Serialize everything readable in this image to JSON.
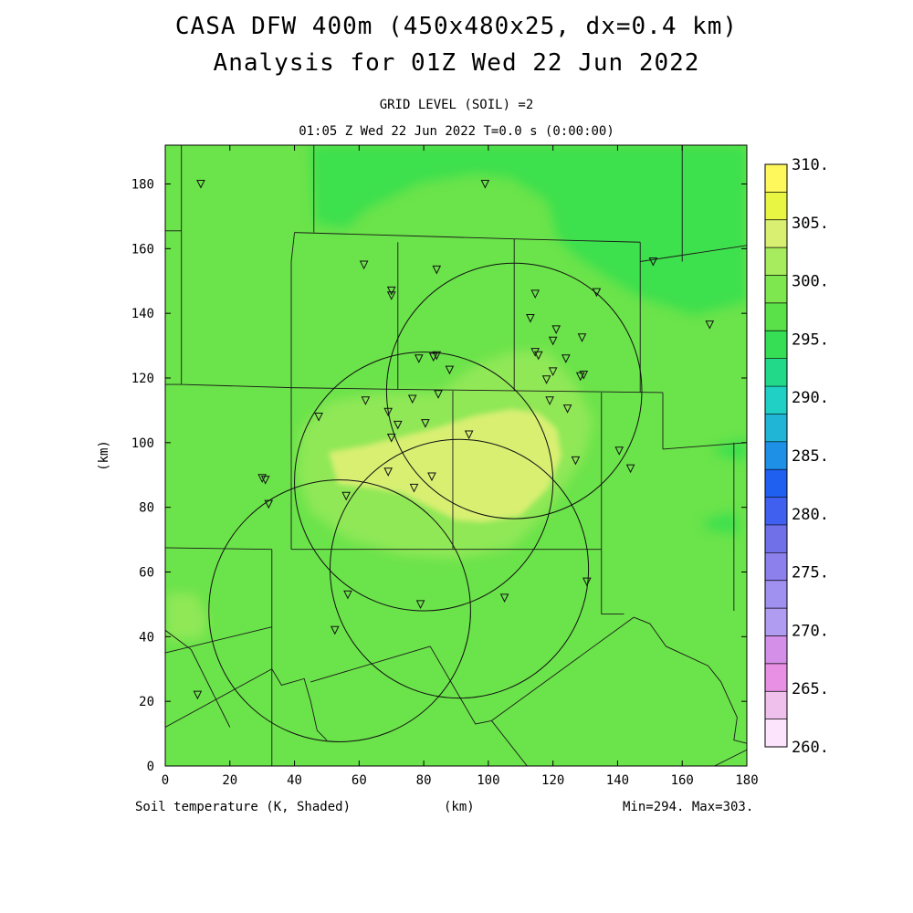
{
  "title_line1": "CASA DFW 400m (450x480x25, dx=0.4 km)",
  "title_line2": "Analysis for 01Z Wed 22 Jun 2022",
  "subtitle_line1": "GRID LEVEL (SOIL) =2",
  "subtitle_line2": "01:05 Z Wed 22 Jun 2022   T=0.0 s (0:00:00)",
  "footer": {
    "field": "Soil temperature (K, Shaded)",
    "xunit": "(km)",
    "minmax": "Min=294. Max=303."
  },
  "colors": {
    "bg_green": "#6be34a",
    "dark_green": "#3ee04e",
    "light_green": "#90e856",
    "pale_yellow": "#d8ef72"
  },
  "chart_data": {
    "type": "heatmap",
    "xlabel": "",
    "ylabel": "(km)",
    "xlim": [
      0,
      180
    ],
    "ylim": [
      0,
      192
    ],
    "xticks": [
      0,
      20,
      40,
      60,
      80,
      100,
      120,
      140,
      160,
      180
    ],
    "yticks": [
      0,
      20,
      40,
      60,
      80,
      100,
      120,
      140,
      160,
      180
    ],
    "colorbar": {
      "labels": [
        "310.",
        "305.",
        "300.",
        "295.",
        "290.",
        "285.",
        "280.",
        "275.",
        "270.",
        "265.",
        "260."
      ],
      "colors": [
        "#fff85c",
        "#e8f542",
        "#d8ef72",
        "#a6ec5e",
        "#7ee64e",
        "#5ae048",
        "#36de56",
        "#22d98a",
        "#20d0c4",
        "#20b4d6",
        "#1e90e6",
        "#2060f0",
        "#4060f0",
        "#7070e8",
        "#8c80ec",
        "#a090f0",
        "#b09cf0",
        "#d490e8",
        "#e890e4",
        "#f0c0ec",
        "#fce4fc"
      ]
    },
    "radars": [
      {
        "x": 108,
        "y": 116,
        "r": 39.5
      },
      {
        "x": 80,
        "y": 88,
        "r": 40
      },
      {
        "x": 91,
        "y": 61,
        "r": 40
      },
      {
        "x": 54,
        "y": 48,
        "r": 40.5
      }
    ],
    "stations": [
      [
        11,
        180
      ],
      [
        99,
        180
      ],
      [
        61.5,
        155
      ],
      [
        84,
        153.5
      ],
      [
        70,
        147
      ],
      [
        70,
        145.5
      ],
      [
        151,
        156
      ],
      [
        114.5,
        146
      ],
      [
        133.5,
        146.5
      ],
      [
        113,
        138.5
      ],
      [
        121,
        135
      ],
      [
        120,
        131.5
      ],
      [
        129,
        132.5
      ],
      [
        168.5,
        136.5
      ],
      [
        114.5,
        128
      ],
      [
        115.5,
        127
      ],
      [
        124,
        126
      ],
      [
        78.5,
        126
      ],
      [
        83,
        126.5
      ],
      [
        84,
        127
      ],
      [
        88,
        122.5
      ],
      [
        120,
        122
      ],
      [
        118,
        119.5
      ],
      [
        129.5,
        121
      ],
      [
        128.5,
        120.5
      ],
      [
        119,
        113
      ],
      [
        124.5,
        110.5
      ],
      [
        62,
        113
      ],
      [
        76.5,
        113.5
      ],
      [
        84.5,
        115
      ],
      [
        69,
        109.5
      ],
      [
        72,
        105.5
      ],
      [
        47.5,
        108
      ],
      [
        80.5,
        106
      ],
      [
        70,
        101.5
      ],
      [
        94,
        102.5
      ],
      [
        140.5,
        97.5
      ],
      [
        127,
        94.5
      ],
      [
        144,
        92
      ],
      [
        69,
        91
      ],
      [
        82.5,
        89.5
      ],
      [
        30,
        89
      ],
      [
        31,
        88.5
      ],
      [
        77,
        86
      ],
      [
        56,
        83.5
      ],
      [
        32,
        81
      ],
      [
        130.5,
        57
      ],
      [
        56.5,
        53
      ],
      [
        79,
        50
      ],
      [
        105,
        52
      ],
      [
        52.5,
        42
      ],
      [
        10,
        22
      ]
    ],
    "counties": [
      [
        [
          5,
          192
        ],
        [
          5,
          118
        ],
        [
          39,
          117
        ],
        [
          39,
          156
        ],
        [
          40,
          165
        ]
      ],
      [
        [
          0,
          118
        ],
        [
          5,
          118
        ]
      ],
      [
        [
          0,
          165.5
        ],
        [
          5,
          165.5
        ]
      ],
      [
        [
          0,
          67.5
        ],
        [
          33,
          67
        ]
      ],
      [
        [
          33,
          67
        ],
        [
          33,
          0
        ]
      ],
      [
        [
          39,
          117
        ],
        [
          39,
          67
        ]
      ],
      [
        [
          39,
          117
        ],
        [
          72,
          116.5
        ]
      ],
      [
        [
          46,
          192
        ],
        [
          46,
          165
        ]
      ],
      [
        [
          40,
          165
        ],
        [
          108,
          163
        ]
      ],
      [
        [
          108,
          163
        ],
        [
          108,
          116
        ]
      ],
      [
        [
          108,
          163
        ],
        [
          147,
          162
        ]
      ],
      [
        [
          72,
          116.5
        ],
        [
          72,
          162
        ]
      ],
      [
        [
          72,
          116.5
        ],
        [
          154,
          115.5
        ]
      ],
      [
        [
          160,
          192
        ],
        [
          160,
          156
        ]
      ],
      [
        [
          147,
          162
        ],
        [
          147,
          156
        ]
      ],
      [
        [
          147,
          156
        ],
        [
          180,
          161
        ]
      ],
      [
        [
          147,
          156
        ],
        [
          147,
          115.5
        ]
      ],
      [
        [
          154,
          115.5
        ],
        [
          154,
          98
        ]
      ],
      [
        [
          154,
          98
        ],
        [
          180,
          100
        ]
      ],
      [
        [
          39,
          67
        ],
        [
          135,
          67
        ]
      ],
      [
        [
          135,
          67
        ],
        [
          135,
          115.5
        ]
      ],
      [
        [
          89,
          67
        ],
        [
          89,
          116
        ]
      ],
      [
        [
          135,
          67
        ],
        [
          135,
          47
        ]
      ],
      [
        [
          135,
          47
        ],
        [
          142,
          47
        ]
      ],
      [
        [
          176,
          100
        ],
        [
          176,
          48
        ]
      ],
      [
        [
          0,
          42
        ],
        [
          8,
          36
        ]
      ],
      [
        [
          0,
          35
        ],
        [
          33,
          43
        ]
      ],
      [
        [
          8,
          36
        ],
        [
          20,
          12
        ]
      ],
      [
        [
          0,
          12
        ],
        [
          33,
          30
        ]
      ],
      [
        [
          33,
          30
        ],
        [
          36,
          25
        ],
        [
          43,
          27
        ],
        [
          45,
          20
        ],
        [
          47,
          11
        ],
        [
          50,
          8
        ]
      ],
      [
        [
          45,
          26
        ],
        [
          82,
          37
        ]
      ],
      [
        [
          82,
          37
        ],
        [
          96,
          13
        ],
        [
          101,
          14
        ]
      ],
      [
        [
          101,
          14
        ],
        [
          145,
          46
        ]
      ],
      [
        [
          101,
          14
        ],
        [
          112,
          0
        ]
      ],
      [
        [
          145,
          46
        ],
        [
          150,
          44
        ],
        [
          155,
          37
        ],
        [
          168,
          31
        ],
        [
          172,
          26
        ],
        [
          177,
          15
        ],
        [
          176,
          8
        ],
        [
          180,
          7
        ]
      ],
      [
        [
          180,
          5
        ],
        [
          170,
          0
        ]
      ]
    ]
  }
}
